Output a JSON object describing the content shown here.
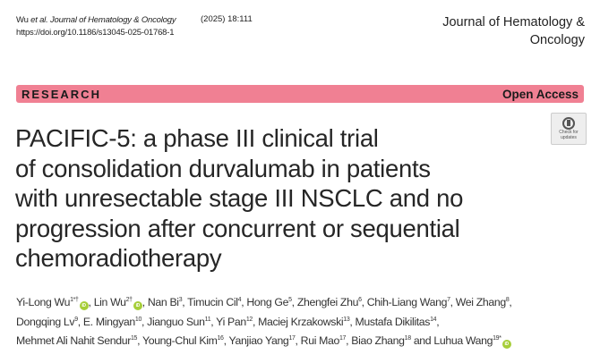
{
  "header": {
    "cite_authors": "Wu ",
    "cite_etal": "et al.",
    "cite_journal": " Journal of Hematology & Oncology",
    "volume": "(2025) 18:111",
    "doi": "https://doi.org/10.1186/s13045-025-01768-1",
    "journal_name_line1": "Journal of Hematology &",
    "journal_name_line2": "Oncology"
  },
  "band": {
    "type": "RESEARCH",
    "access": "Open Access"
  },
  "check_updates": {
    "label_line1": "Check for",
    "label_line2": "updates",
    "icon": "check-for-updates-icon"
  },
  "title_lines": [
    "PACIFIC-5: a phase III clinical trial",
    "of consolidation durvalumab in patients",
    "with unresectable stage III NSCLC and no",
    "progression after concurrent or sequential",
    "chemoradiotherapy"
  ],
  "author_lines": [
    [
      {
        "name": "Yi-Long Wu",
        "sup": "1*†",
        "orcid": true,
        "sep": ", "
      },
      {
        "name": "Lin Wu",
        "sup": "2†",
        "orcid": true,
        "sep": ", "
      },
      {
        "name": "Nan Bi",
        "sup": "3",
        "sep": ", "
      },
      {
        "name": "Timucin Cil",
        "sup": "4",
        "sep": ", "
      },
      {
        "name": "Hong Ge",
        "sup": "5",
        "sep": ", "
      },
      {
        "name": "Zhengfei Zhu",
        "sup": "6",
        "sep": ", "
      },
      {
        "name": "Chih-Liang Wang",
        "sup": "7",
        "sep": ", "
      },
      {
        "name": "Wei Zhang",
        "sup": "8",
        "sep": ","
      }
    ],
    [
      {
        "name": "Dongqing Lv",
        "sup": "9",
        "sep": ", "
      },
      {
        "name": "E. Mingyan",
        "sup": "10",
        "sep": ", "
      },
      {
        "name": "Jianguo Sun",
        "sup": "11",
        "sep": ", "
      },
      {
        "name": "Yi Pan",
        "sup": "12",
        "sep": ", "
      },
      {
        "name": "Maciej Krzakowski",
        "sup": "13",
        "sep": ", "
      },
      {
        "name": "Mustafa Dikilitas",
        "sup": "14",
        "sep": ","
      }
    ],
    [
      {
        "name": "Mehmet Ali Nahit Sendur",
        "sup": "15",
        "sep": ", "
      },
      {
        "name": "Young-Chul Kim",
        "sup": "16",
        "sep": ", "
      },
      {
        "name": "Yanjiao Yang",
        "sup": "17",
        "sep": ", "
      },
      {
        "name": "Rui Mao",
        "sup": "17",
        "sep": ", "
      },
      {
        "name": "Biao Zhang",
        "sup": "18",
        "sep": " and "
      },
      {
        "name": "Luhua Wang",
        "sup": "19*",
        "orcid": true,
        "sep": ""
      }
    ]
  ],
  "orcid_label": "iD",
  "colors": {
    "band": "#f08093",
    "orcid": "#a6ce39"
  }
}
